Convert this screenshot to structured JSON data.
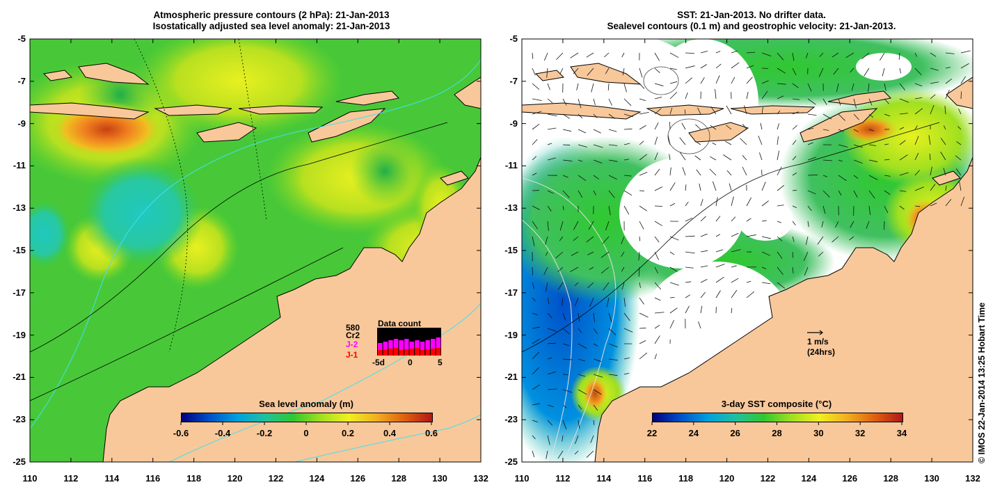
{
  "left_panel": {
    "title_line1": "Atmospheric pressure contours (2 hPa): 21-Jan-2013",
    "title_line2": "Isostatically adjusted sea level anomaly: 21-Jan-2013",
    "colorbar": {
      "title": "Sea level anomaly (m)",
      "ticks": [
        "-0.6",
        "-0.4",
        "-0.2",
        "0",
        "0.2",
        "0.4",
        "0.6"
      ]
    },
    "data_count": {
      "title": "Data count",
      "label_580": "580",
      "label_cr2": "Cr2",
      "label_j2": "J-2",
      "label_j1": "J-1",
      "x_ticks": [
        "-5d",
        "0",
        "5"
      ],
      "colors": {
        "cr2": "#000000",
        "j2": "#ff00ff",
        "j1": "#ff0000"
      }
    }
  },
  "right_panel": {
    "title_line1": "SST: 21-Jan-2013. No drifter data.",
    "title_line2": "Sealevel contours (0.1 m) and geostrophic velocity: 21-Jan-2013.",
    "colorbar": {
      "title": "3-day SST composite (°C)",
      "ticks": [
        "22",
        "24",
        "26",
        "28",
        "30",
        "32",
        "34"
      ]
    },
    "velocity_key": {
      "label1": "1 m/s",
      "label2": "(24hrs)"
    }
  },
  "y_ticks": [
    "-5",
    "-7",
    "-9",
    "-11",
    "-13",
    "-15",
    "-17",
    "-19",
    "-21",
    "-23",
    "-25"
  ],
  "x_ticks": [
    "110",
    "112",
    "114",
    "116",
    "118",
    "120",
    "122",
    "124",
    "126",
    "128",
    "130",
    "132"
  ],
  "credit": "© IMOS 22-Jan-2014 13:25 Hobart Time",
  "colors": {
    "land": "#f8c89a",
    "ocean_green": "#3cc83c",
    "ocean_yellowgreen": "#a8e020",
    "ocean_cyan": "#28c8a0",
    "ocean_orange": "#f08020",
    "cloud": "#ffffff"
  },
  "colorbar_gradient": [
    "#000080",
    "#0050c8",
    "#00a0e0",
    "#20c0a0",
    "#30c830",
    "#a0e020",
    "#f0f020",
    "#f0b020",
    "#e06010",
    "#b01818"
  ]
}
